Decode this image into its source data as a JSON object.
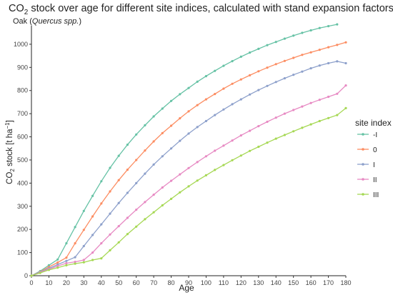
{
  "chart_data": {
    "type": "line",
    "title": {
      "main_pre": "CO",
      "main_sub": "2",
      "main_post": " stock over age for different site indices, calculated with stand expansion factors"
    },
    "subtitle": {
      "pre": "Oak (",
      "italic": "Quercus spp.",
      "post": ")"
    },
    "xlabel": "Age",
    "ylabel": {
      "pre": "CO",
      "sub": "2",
      "post": " stock [t ha",
      "sup": "−1",
      "end": "]"
    },
    "xlim": [
      0,
      180
    ],
    "ylim": [
      0,
      1080
    ],
    "xticks": [
      0,
      10,
      20,
      30,
      40,
      50,
      60,
      70,
      80,
      90,
      100,
      110,
      120,
      130,
      140,
      150,
      160,
      170,
      180
    ],
    "yticks": [
      0,
      100,
      200,
      300,
      400,
      500,
      600,
      700,
      800,
      900,
      1000
    ],
    "grid": false,
    "legend": {
      "title": "site index",
      "position": "right"
    },
    "series": [
      {
        "name": "-I",
        "color": "#66c2a5",
        "x": [
          0,
          5,
          10,
          15,
          20,
          25,
          30,
          35,
          40,
          45,
          50,
          55,
          60,
          65,
          70,
          75,
          80,
          85,
          90,
          95,
          100,
          105,
          110,
          115,
          120,
          125,
          130,
          135,
          140,
          145,
          150,
          155,
          160,
          165,
          170,
          175
        ],
        "values": [
          0,
          20,
          45,
          70,
          140,
          210,
          280,
          345,
          408,
          466,
          518,
          566,
          610,
          650,
          688,
          722,
          755,
          784,
          811,
          838,
          862,
          885,
          907,
          927,
          946,
          964,
          980,
          996,
          1010,
          1024,
          1037,
          1049,
          1060,
          1070,
          1078,
          1086
        ]
      },
      {
        "name": "0",
        "color": "#fc8d62",
        "x": [
          0,
          5,
          10,
          15,
          20,
          25,
          30,
          35,
          40,
          45,
          50,
          55,
          60,
          65,
          70,
          75,
          80,
          85,
          90,
          95,
          100,
          105,
          110,
          115,
          120,
          125,
          130,
          135,
          140,
          145,
          150,
          155,
          160,
          165,
          170,
          175,
          180
        ],
        "values": [
          0,
          17,
          38,
          57,
          78,
          140,
          198,
          256,
          312,
          364,
          413,
          458,
          500,
          541,
          580,
          616,
          648,
          680,
          710,
          737,
          762,
          785,
          808,
          829,
          848,
          866,
          883,
          899,
          914,
          928,
          941,
          954,
          965,
          976,
          987,
          997,
          1008
        ]
      },
      {
        "name": "I",
        "color": "#8da0cb",
        "x": [
          0,
          5,
          10,
          15,
          20,
          25,
          30,
          35,
          40,
          45,
          50,
          55,
          60,
          65,
          70,
          75,
          80,
          85,
          90,
          95,
          100,
          105,
          110,
          115,
          120,
          125,
          130,
          135,
          140,
          145,
          150,
          155,
          160,
          165,
          170,
          175,
          180
        ],
        "values": [
          0,
          16,
          32,
          48,
          64,
          80,
          128,
          176,
          222,
          268,
          314,
          358,
          400,
          441,
          480,
          516,
          550,
          583,
          614,
          642,
          668,
          694,
          718,
          741,
          762,
          783,
          802,
          820,
          837,
          853,
          868,
          882,
          896,
          908,
          918,
          926,
          918
        ]
      },
      {
        "name": "II",
        "color": "#e78ac3",
        "x": [
          0,
          5,
          10,
          15,
          20,
          25,
          30,
          35,
          40,
          45,
          50,
          55,
          60,
          65,
          70,
          75,
          80,
          85,
          90,
          95,
          100,
          105,
          110,
          115,
          120,
          125,
          130,
          135,
          140,
          145,
          150,
          155,
          160,
          165,
          170,
          175,
          180
        ],
        "values": [
          0,
          14,
          28,
          42,
          54,
          60,
          68,
          100,
          140,
          178,
          214,
          250,
          285,
          318,
          350,
          381,
          410,
          438,
          465,
          491,
          516,
          540,
          562,
          584,
          606,
          626,
          646,
          665,
          683,
          700,
          716,
          731,
          746,
          760,
          773,
          786,
          822
        ]
      },
      {
        "name": "III",
        "color": "#a6d854",
        "x": [
          0,
          5,
          10,
          15,
          20,
          25,
          30,
          35,
          40,
          45,
          50,
          55,
          60,
          65,
          70,
          75,
          80,
          85,
          90,
          95,
          100,
          105,
          110,
          115,
          120,
          125,
          130,
          135,
          140,
          145,
          150,
          155,
          160,
          165,
          170,
          175,
          180
        ],
        "values": [
          0,
          12,
          25,
          35,
          45,
          52,
          58,
          68,
          75,
          110,
          144,
          180,
          212,
          244,
          274,
          304,
          332,
          360,
          386,
          411,
          434,
          457,
          478,
          499,
          519,
          539,
          557,
          575,
          592,
          608,
          624,
          639,
          654,
          668,
          681,
          694,
          724
        ]
      }
    ]
  }
}
